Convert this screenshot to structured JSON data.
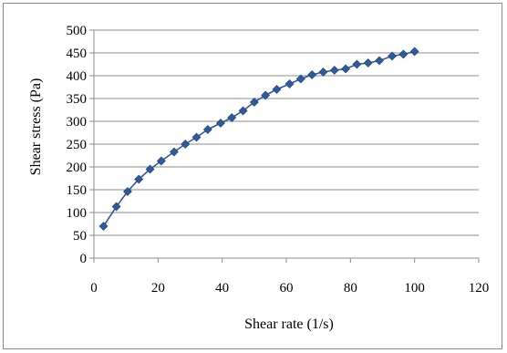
{
  "chart_data": {
    "type": "line",
    "title": "",
    "xlabel": "Shear rate (1/s)",
    "ylabel": "Shear stress (Pa)",
    "xlim": [
      0,
      120
    ],
    "ylim": [
      0,
      500
    ],
    "x_ticks": [
      0,
      20,
      40,
      60,
      80,
      100,
      120
    ],
    "y_ticks": [
      0,
      50,
      100,
      150,
      200,
      250,
      300,
      350,
      400,
      450,
      500
    ],
    "grid": "horizontal",
    "legend": "none",
    "marker": "diamond",
    "color": "#2f5b9a",
    "series": [
      {
        "x": [
          3,
          7,
          10.5,
          14,
          17.5,
          21,
          25,
          28.5,
          32,
          35.5,
          39.5,
          43,
          46.5,
          50,
          53.5,
          57,
          61,
          64.5,
          68,
          71.5,
          75,
          78.5,
          82,
          85.5,
          89,
          93,
          96.5,
          100
        ],
        "y": [
          70,
          113,
          146,
          173,
          195,
          213,
          233,
          250,
          265,
          282,
          296,
          308,
          323,
          342,
          357,
          370,
          382,
          393,
          402,
          408,
          412,
          415,
          425,
          428,
          433,
          443,
          447,
          453
        ]
      }
    ]
  }
}
